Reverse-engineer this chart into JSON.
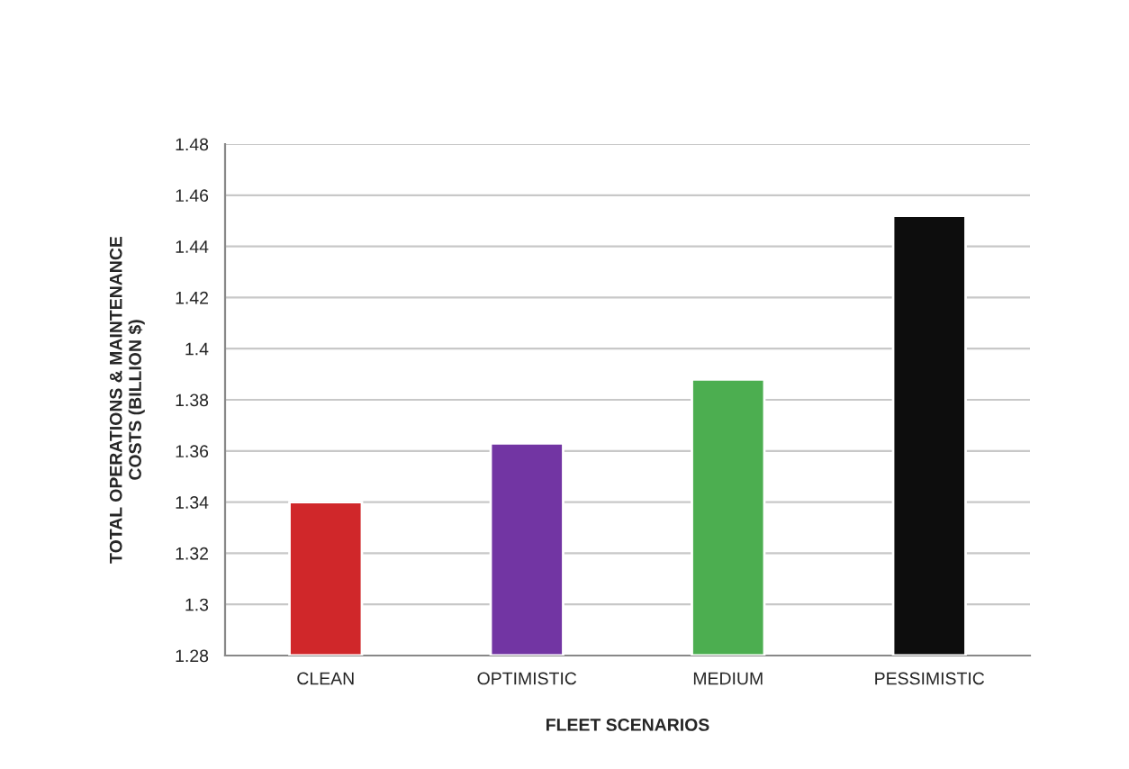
{
  "chart_data": {
    "type": "bar",
    "categories": [
      "CLEAN",
      "OPTIMISTIC",
      "MEDIUM",
      "PESSIMISTIC"
    ],
    "values": [
      1.34,
      1.363,
      1.388,
      1.452
    ],
    "colors": [
      "#d0272a",
      "#7235a3",
      "#4cae50",
      "#0d0d0d"
    ],
    "xlabel": "FLEET SCENARIOS",
    "ylabel": "TOTAL OPERATIONS & MAINTENANCE\nCOSTS (BILLION $)",
    "ylim": [
      1.28,
      1.48
    ],
    "yticks": [
      1.28,
      1.3,
      1.32,
      1.34,
      1.36,
      1.38,
      1.4,
      1.42,
      1.44,
      1.46,
      1.48
    ],
    "grid": "y",
    "legend": false
  }
}
